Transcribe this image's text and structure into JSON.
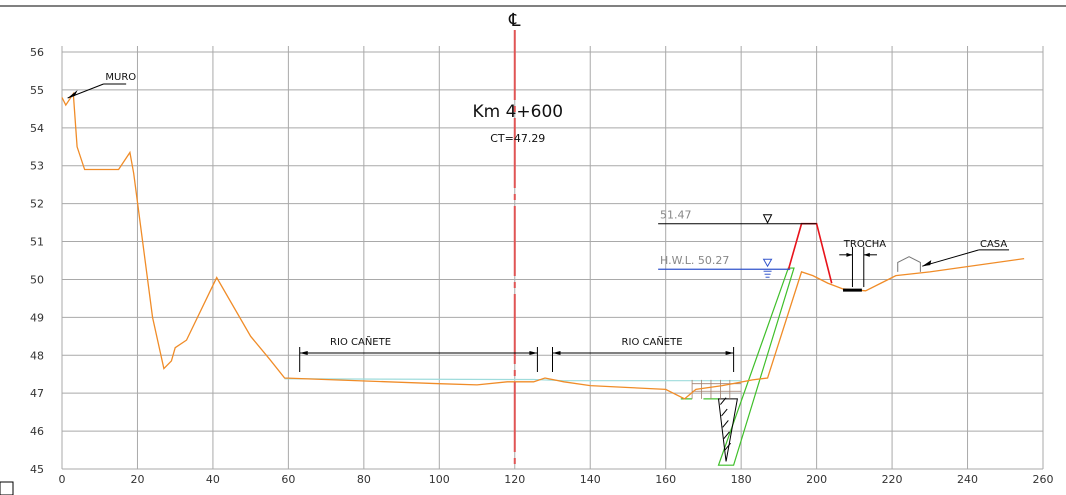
{
  "drawing": {
    "centerline_symbol": "℄",
    "station": "Km  4+600",
    "ct": "CT=47.29",
    "muro": "MURO",
    "rio_left": "RIO    CAÑETE",
    "rio_right": "RIO    CAÑETE",
    "crest_level": "51.47",
    "hwl": "H.W.L.  50.27",
    "trocha": "TROCHA",
    "casa": "CASA",
    "colors": {
      "ground": "#f08c28",
      "grid": "#a9a9a9",
      "centerline": "#e05555",
      "hwl_line": "#3355cc",
      "water": "#9fdcdc",
      "dike": "#e8131b",
      "excavation": "#3fbf2a"
    },
    "icons": [
      "water-level-icon",
      "level-triangle-icon",
      "leader-arrow-icon",
      "house-icon"
    ]
  },
  "chart_data": {
    "type": "line",
    "xlabel": "",
    "ylabel": "",
    "xlim": [
      0,
      260
    ],
    "ylim": [
      45,
      56
    ],
    "x_ticks": [
      0,
      20,
      40,
      60,
      80,
      100,
      120,
      140,
      160,
      180,
      200,
      220,
      240,
      260
    ],
    "y_ticks": [
      45,
      46,
      47,
      48,
      49,
      50,
      51,
      52,
      53,
      54,
      55,
      56
    ],
    "series": [
      {
        "values": [
          [
            0,
            54.8
          ],
          [
            1,
            54.6
          ],
          [
            3,
            54.9
          ],
          [
            4,
            53.5
          ],
          [
            6,
            52.9
          ],
          [
            15,
            52.9
          ],
          [
            18,
            53.35
          ],
          [
            19,
            52.8
          ],
          [
            24,
            49.0
          ],
          [
            26,
            48.1
          ],
          [
            27,
            47.65
          ],
          [
            29,
            47.85
          ],
          [
            30,
            48.2
          ],
          [
            33,
            48.4
          ],
          [
            41,
            50.05
          ],
          [
            50,
            48.5
          ],
          [
            55,
            47.9
          ],
          [
            59,
            47.4
          ],
          [
            100,
            47.25
          ],
          [
            110,
            47.22
          ],
          [
            118,
            47.3
          ],
          [
            125,
            47.3
          ],
          [
            128,
            47.4
          ],
          [
            133,
            47.3
          ],
          [
            140,
            47.2
          ],
          [
            150,
            47.15
          ],
          [
            160,
            47.1
          ],
          [
            165,
            46.85
          ],
          [
            168,
            47.1
          ],
          [
            175,
            47.2
          ],
          [
            183,
            47.35
          ],
          [
            187,
            47.4
          ],
          [
            196,
            50.2
          ],
          [
            199,
            50.1
          ],
          [
            203,
            49.9
          ],
          [
            207,
            49.75
          ],
          [
            213,
            49.7
          ],
          [
            217,
            49.9
          ],
          [
            221,
            50.1
          ],
          [
            230,
            50.2
          ],
          [
            255,
            50.55
          ]
        ]
      }
    ],
    "annotations": {
      "centerline_x": 120,
      "hwl_y": 50.27,
      "crest_y": 51.47,
      "rio_left_x": [
        63,
        126
      ],
      "rio_right_x": [
        130,
        178
      ]
    }
  }
}
